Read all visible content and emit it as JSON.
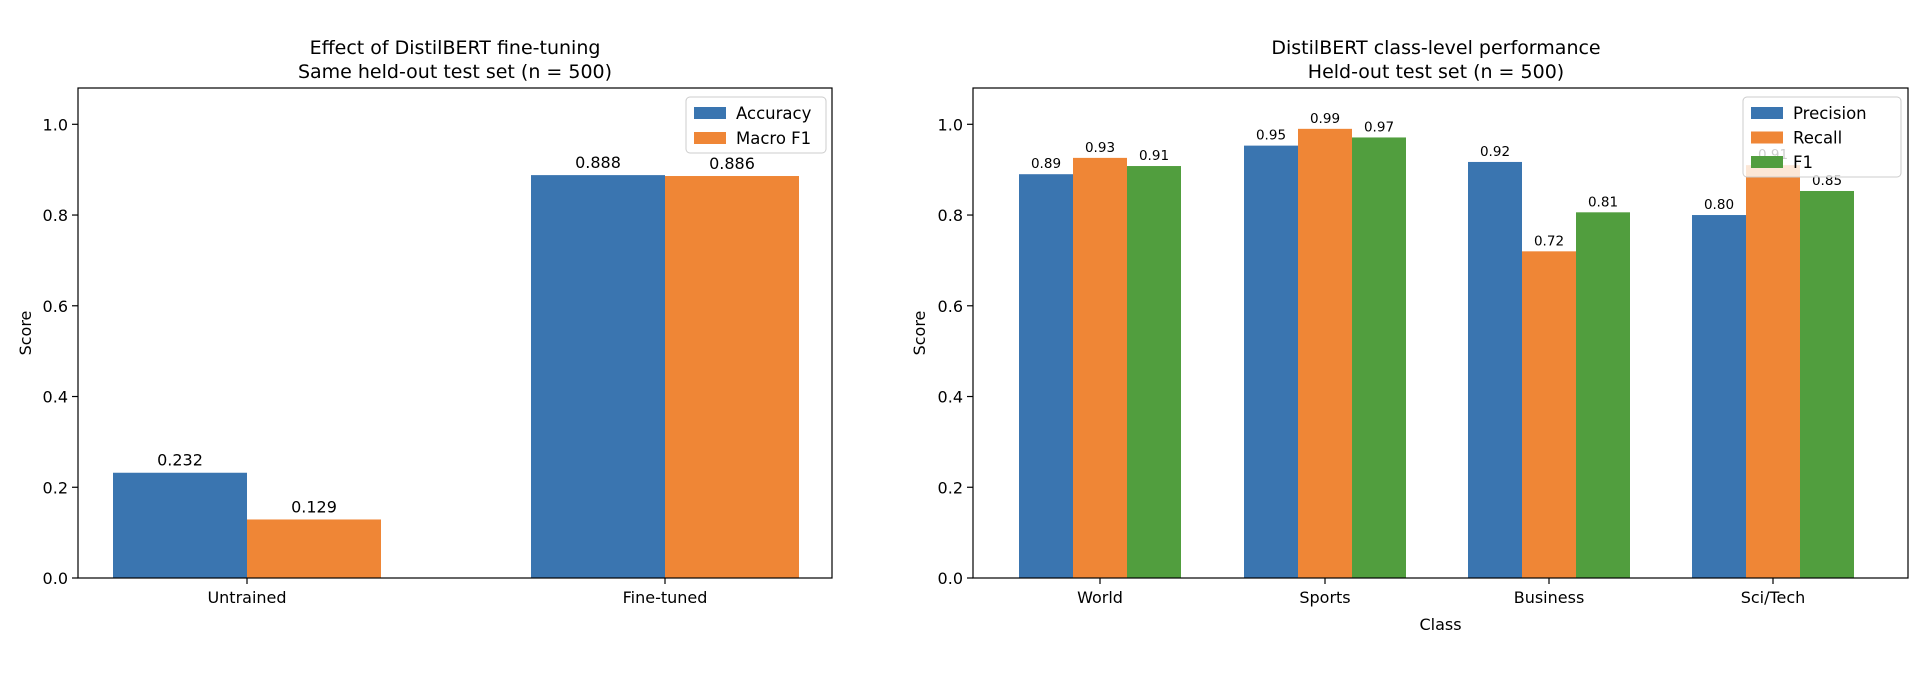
{
  "chart_data": [
    {
      "type": "bar",
      "title": "Effect of DistilBERT fine-tuning",
      "subtitle": "Same held-out test set (n = 500)",
      "xlabel": "",
      "ylabel": "Score",
      "ylim": [
        0,
        1.08
      ],
      "yticks": [
        "0.0",
        "0.2",
        "0.4",
        "0.6",
        "0.8",
        "1.0"
      ],
      "categories": [
        "Untrained",
        "Fine-tuned"
      ],
      "series": [
        {
          "name": "Accuracy",
          "color": "#3a75b0",
          "values": [
            0.232,
            0.888
          ],
          "labels": [
            "0.232",
            "0.888"
          ]
        },
        {
          "name": "Macro F1",
          "color": "#ef8636",
          "values": [
            0.129,
            0.886
          ],
          "labels": [
            "0.129",
            "0.886"
          ]
        }
      ],
      "grid": false,
      "legend": "top-right"
    },
    {
      "type": "bar",
      "title": "DistilBERT class-level performance",
      "subtitle": "Held-out test set (n = 500)",
      "xlabel": "Class",
      "ylabel": "Score",
      "ylim": [
        0,
        1.08
      ],
      "yticks": [
        "0.0",
        "0.2",
        "0.4",
        "0.6",
        "0.8",
        "1.0"
      ],
      "categories": [
        "World",
        "Sports",
        "Business",
        "Sci/Tech"
      ],
      "series": [
        {
          "name": "Precision",
          "color": "#3a75b0",
          "values": [
            0.89,
            0.953,
            0.917,
            0.8
          ],
          "labels": [
            "0.89",
            "0.95",
            "0.92",
            "0.80"
          ]
        },
        {
          "name": "Recall",
          "color": "#ef8636",
          "values": [
            0.926,
            0.99,
            0.72,
            0.91
          ],
          "labels": [
            "0.93",
            "0.99",
            "0.72",
            "0.91"
          ]
        },
        {
          "name": "F1",
          "color": "#519e3e",
          "values": [
            0.908,
            0.971,
            0.806,
            0.853
          ],
          "labels": [
            "0.91",
            "0.97",
            "0.81",
            "0.85"
          ]
        }
      ],
      "grid": false,
      "legend": "top-right"
    }
  ]
}
